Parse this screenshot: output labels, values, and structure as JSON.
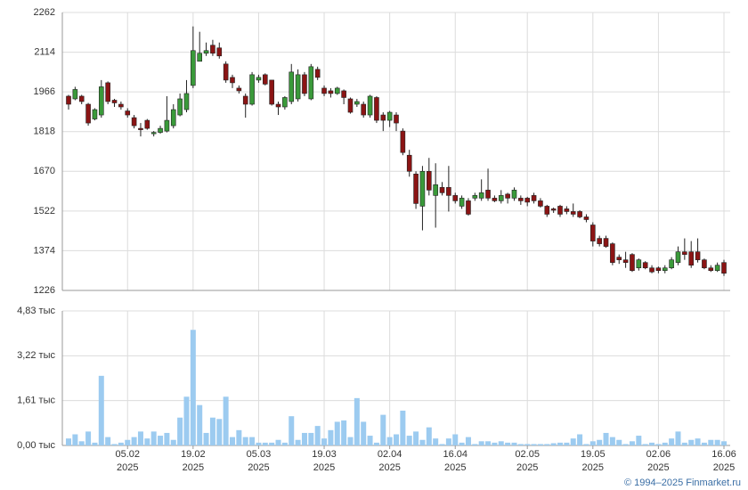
{
  "chart_data": {
    "type": "candlestick",
    "up_color": "#3a9a3a",
    "down_color": "#8b1414",
    "volume_color": "#9ccbf0",
    "grid": true,
    "x": [
      "2025-01-23",
      "2025-01-24",
      "2025-01-27",
      "2025-01-28",
      "2025-01-29",
      "2025-01-30",
      "2025-01-31",
      "2025-02-03",
      "2025-02-04",
      "2025-02-05",
      "2025-02-06",
      "2025-02-07",
      "2025-02-10",
      "2025-02-11",
      "2025-02-12",
      "2025-02-13",
      "2025-02-14",
      "2025-02-17",
      "2025-02-18",
      "2025-02-19",
      "2025-02-20",
      "2025-02-21",
      "2025-02-24",
      "2025-02-25",
      "2025-02-26",
      "2025-02-27",
      "2025-02-28",
      "2025-03-03",
      "2025-03-04",
      "2025-03-05",
      "2025-03-06",
      "2025-03-07",
      "2025-03-10",
      "2025-03-11",
      "2025-03-12",
      "2025-03-13",
      "2025-03-14",
      "2025-03-17",
      "2025-03-18",
      "2025-03-19",
      "2025-03-20",
      "2025-03-21",
      "2025-03-24",
      "2025-03-25",
      "2025-03-26",
      "2025-03-27",
      "2025-03-28",
      "2025-03-31",
      "2025-04-01",
      "2025-04-02",
      "2025-04-03",
      "2025-04-04",
      "2025-04-07",
      "2025-04-08",
      "2025-04-09",
      "2025-04-10",
      "2025-04-11",
      "2025-04-14",
      "2025-04-15",
      "2025-04-16",
      "2025-04-17",
      "2025-04-18",
      "2025-04-21",
      "2025-04-22",
      "2025-04-23",
      "2025-04-24",
      "2025-04-25",
      "2025-04-28",
      "2025-04-29",
      "2025-04-30",
      "2025-05-02",
      "2025-05-05",
      "2025-05-06",
      "2025-05-07",
      "2025-05-08",
      "2025-05-12",
      "2025-05-13",
      "2025-05-14",
      "2025-05-15",
      "2025-05-16",
      "2025-05-19",
      "2025-05-20",
      "2025-05-21",
      "2025-05-22",
      "2025-05-23",
      "2025-05-26",
      "2025-05-27",
      "2025-05-28",
      "2025-05-29",
      "2025-05-30",
      "2025-06-02",
      "2025-06-03",
      "2025-06-04",
      "2025-06-05",
      "2025-06-06",
      "2025-06-09",
      "2025-06-10",
      "2025-06-11",
      "2025-06-12",
      "2025-06-13",
      "2025-06-16"
    ],
    "open": [
      1950,
      1940,
      1950,
      1920,
      1865,
      1880,
      2000,
      1935,
      1920,
      1895,
      1870,
      1830,
      1860,
      1810,
      1815,
      1820,
      1840,
      1880,
      1900,
      1990,
      2080,
      2110,
      2140,
      2130,
      2070,
      2020,
      1980,
      1950,
      1920,
      2010,
      2030,
      2010,
      1920,
      1910,
      1930,
      1940,
      2030,
      1940,
      2050,
      1980,
      1970,
      1960,
      1970,
      1940,
      1920,
      1920,
      1880,
      1945,
      1880,
      1860,
      1880,
      1820,
      1730,
      1660,
      1540,
      1670,
      1580,
      1610,
      1610,
      1580,
      1540,
      1560,
      1570,
      1570,
      1600,
      1570,
      1560,
      1585,
      1570,
      1570,
      1570,
      1580,
      1560,
      1540,
      1530,
      1540,
      1530,
      1520,
      1520,
      1500,
      1470,
      1420,
      1420,
      1400,
      1350,
      1340,
      1360,
      1310,
      1330,
      1310,
      1310,
      1300,
      1310,
      1330,
      1370,
      1370,
      1370,
      1340,
      1310,
      1300,
      1330
    ],
    "high": [
      1955,
      1985,
      1955,
      1925,
      1905,
      2010,
      2005,
      1940,
      1930,
      1905,
      1880,
      1850,
      1865,
      1820,
      1840,
      1950,
      1920,
      1960,
      2010,
      2210,
      2190,
      2150,
      2160,
      2150,
      2080,
      2030,
      1990,
      1960,
      2040,
      2030,
      2035,
      2010,
      1930,
      1950,
      2070,
      2050,
      2040,
      2070,
      2060,
      1990,
      1980,
      1985,
      1975,
      1945,
      1940,
      1930,
      1955,
      1950,
      1890,
      1895,
      1890,
      1830,
      1750,
      1670,
      1690,
      1720,
      1700,
      1630,
      1690,
      1590,
      1580,
      1570,
      1590,
      1640,
      1680,
      1580,
      1600,
      1590,
      1610,
      1580,
      1575,
      1590,
      1570,
      1545,
      1535,
      1545,
      1540,
      1550,
      1525,
      1510,
      1480,
      1430,
      1430,
      1405,
      1360,
      1370,
      1365,
      1345,
      1335,
      1320,
      1315,
      1320,
      1350,
      1390,
      1420,
      1410,
      1420,
      1345,
      1320,
      1330,
      1340
    ],
    "low": [
      1900,
      1935,
      1920,
      1840,
      1860,
      1870,
      1920,
      1910,
      1900,
      1870,
      1830,
      1800,
      1825,
      1800,
      1810,
      1815,
      1830,
      1875,
      1890,
      1980,
      2080,
      2100,
      2100,
      2090,
      2000,
      1980,
      1960,
      1870,
      1915,
      2000,
      1990,
      1915,
      1880,
      1900,
      1920,
      1930,
      1950,
      1935,
      2010,
      1950,
      1945,
      1955,
      1920,
      1885,
      1910,
      1870,
      1870,
      1850,
      1820,
      1835,
      1820,
      1730,
      1650,
      1530,
      1450,
      1580,
      1460,
      1580,
      1520,
      1550,
      1530,
      1505,
      1560,
      1560,
      1560,
      1555,
      1550,
      1550,
      1560,
      1545,
      1540,
      1550,
      1535,
      1500,
      1515,
      1500,
      1510,
      1500,
      1495,
      1480,
      1390,
      1390,
      1385,
      1320,
      1325,
      1310,
      1295,
      1300,
      1305,
      1290,
      1290,
      1290,
      1305,
      1320,
      1340,
      1310,
      1330,
      1305,
      1295,
      1295,
      1280
    ],
    "close": [
      1920,
      1975,
      1930,
      1850,
      1900,
      1985,
      1930,
      1925,
      1910,
      1880,
      1840,
      1825,
      1830,
      1815,
      1830,
      1860,
      1900,
      1940,
      1960,
      2120,
      2110,
      2120,
      2110,
      2100,
      2010,
      2000,
      1970,
      1920,
      2030,
      2020,
      1995,
      1920,
      1910,
      1945,
      2040,
      2030,
      1960,
      2060,
      2020,
      1960,
      1960,
      1980,
      1945,
      1890,
      1930,
      1880,
      1950,
      1860,
      1860,
      1890,
      1850,
      1740,
      1670,
      1550,
      1670,
      1600,
      1620,
      1590,
      1580,
      1560,
      1570,
      1510,
      1580,
      1590,
      1570,
      1560,
      1580,
      1570,
      1600,
      1560,
      1555,
      1560,
      1540,
      1510,
      1525,
      1510,
      1520,
      1510,
      1500,
      1490,
      1410,
      1400,
      1390,
      1330,
      1340,
      1330,
      1300,
      1340,
      1310,
      1295,
      1300,
      1310,
      1340,
      1370,
      1360,
      1320,
      1340,
      1310,
      1300,
      1320,
      1290
    ],
    "volume": [
      0.25,
      0.4,
      0.15,
      0.5,
      0.1,
      2.5,
      0.3,
      0.05,
      0.1,
      0.2,
      0.3,
      0.5,
      0.25,
      0.5,
      0.35,
      0.45,
      0.2,
      1.0,
      1.75,
      4.15,
      1.45,
      0.45,
      1.0,
      0.95,
      1.75,
      0.3,
      0.55,
      0.3,
      0.3,
      0.1,
      0.1,
      0.1,
      0.2,
      0.1,
      1.05,
      0.2,
      0.45,
      0.45,
      0.7,
      0.25,
      0.55,
      0.85,
      0.9,
      0.3,
      1.7,
      0.85,
      0.35,
      0.1,
      1.1,
      0.3,
      0.4,
      1.25,
      0.35,
      0.5,
      0.2,
      0.65,
      0.25,
      0.05,
      0.25,
      0.4,
      0.1,
      0.3,
      0.05,
      0.15,
      0.15,
      0.1,
      0.15,
      0.1,
      0.1,
      0.05,
      0.05,
      0.05,
      0.05,
      0.05,
      0.08,
      0.1,
      0.1,
      0.25,
      0.4,
      0.05,
      0.15,
      0.2,
      0.45,
      0.3,
      0.2,
      0.05,
      0.15,
      0.35,
      0.05,
      0.1,
      0.05,
      0.1,
      0.25,
      0.5,
      0.1,
      0.2,
      0.25,
      0.1,
      0.2,
      0.2,
      0.15
    ],
    "ylim": [
      1226,
      2262
    ],
    "yticks": [
      1226,
      1374,
      1522,
      1670,
      1818,
      1966,
      2114,
      2262
    ],
    "volume_lim": [
      0,
      4.83
    ],
    "volume_ticks": [
      {
        "value": 0,
        "label": "0,00 тыс"
      },
      {
        "value": 1.61,
        "label": "1,61 тыс"
      },
      {
        "value": 3.22,
        "label": "3,22 тыс"
      },
      {
        "value": 4.83,
        "label": "4,83 тыс"
      }
    ],
    "xticks": [
      {
        "value": "2025-02-05",
        "label": "05.02",
        "year": "2025"
      },
      {
        "value": "2025-02-19",
        "label": "19.02",
        "year": "2025"
      },
      {
        "value": "2025-03-05",
        "label": "05.03",
        "year": "2025"
      },
      {
        "value": "2025-03-19",
        "label": "19.03",
        "year": "2025"
      },
      {
        "value": "2025-04-02",
        "label": "02.04",
        "year": "2025"
      },
      {
        "value": "2025-04-16",
        "label": "16.04",
        "year": "2025"
      },
      {
        "value": "2025-05-02",
        "label": "02.05",
        "year": "2025"
      },
      {
        "value": "2025-05-19",
        "label": "19.05",
        "year": "2025"
      },
      {
        "value": "2025-06-02",
        "label": "02.06",
        "year": "2025"
      },
      {
        "value": "2025-06-16",
        "label": "16.06",
        "year": "2025"
      }
    ],
    "source": "© 1994–2025 Finmarket.ru"
  }
}
